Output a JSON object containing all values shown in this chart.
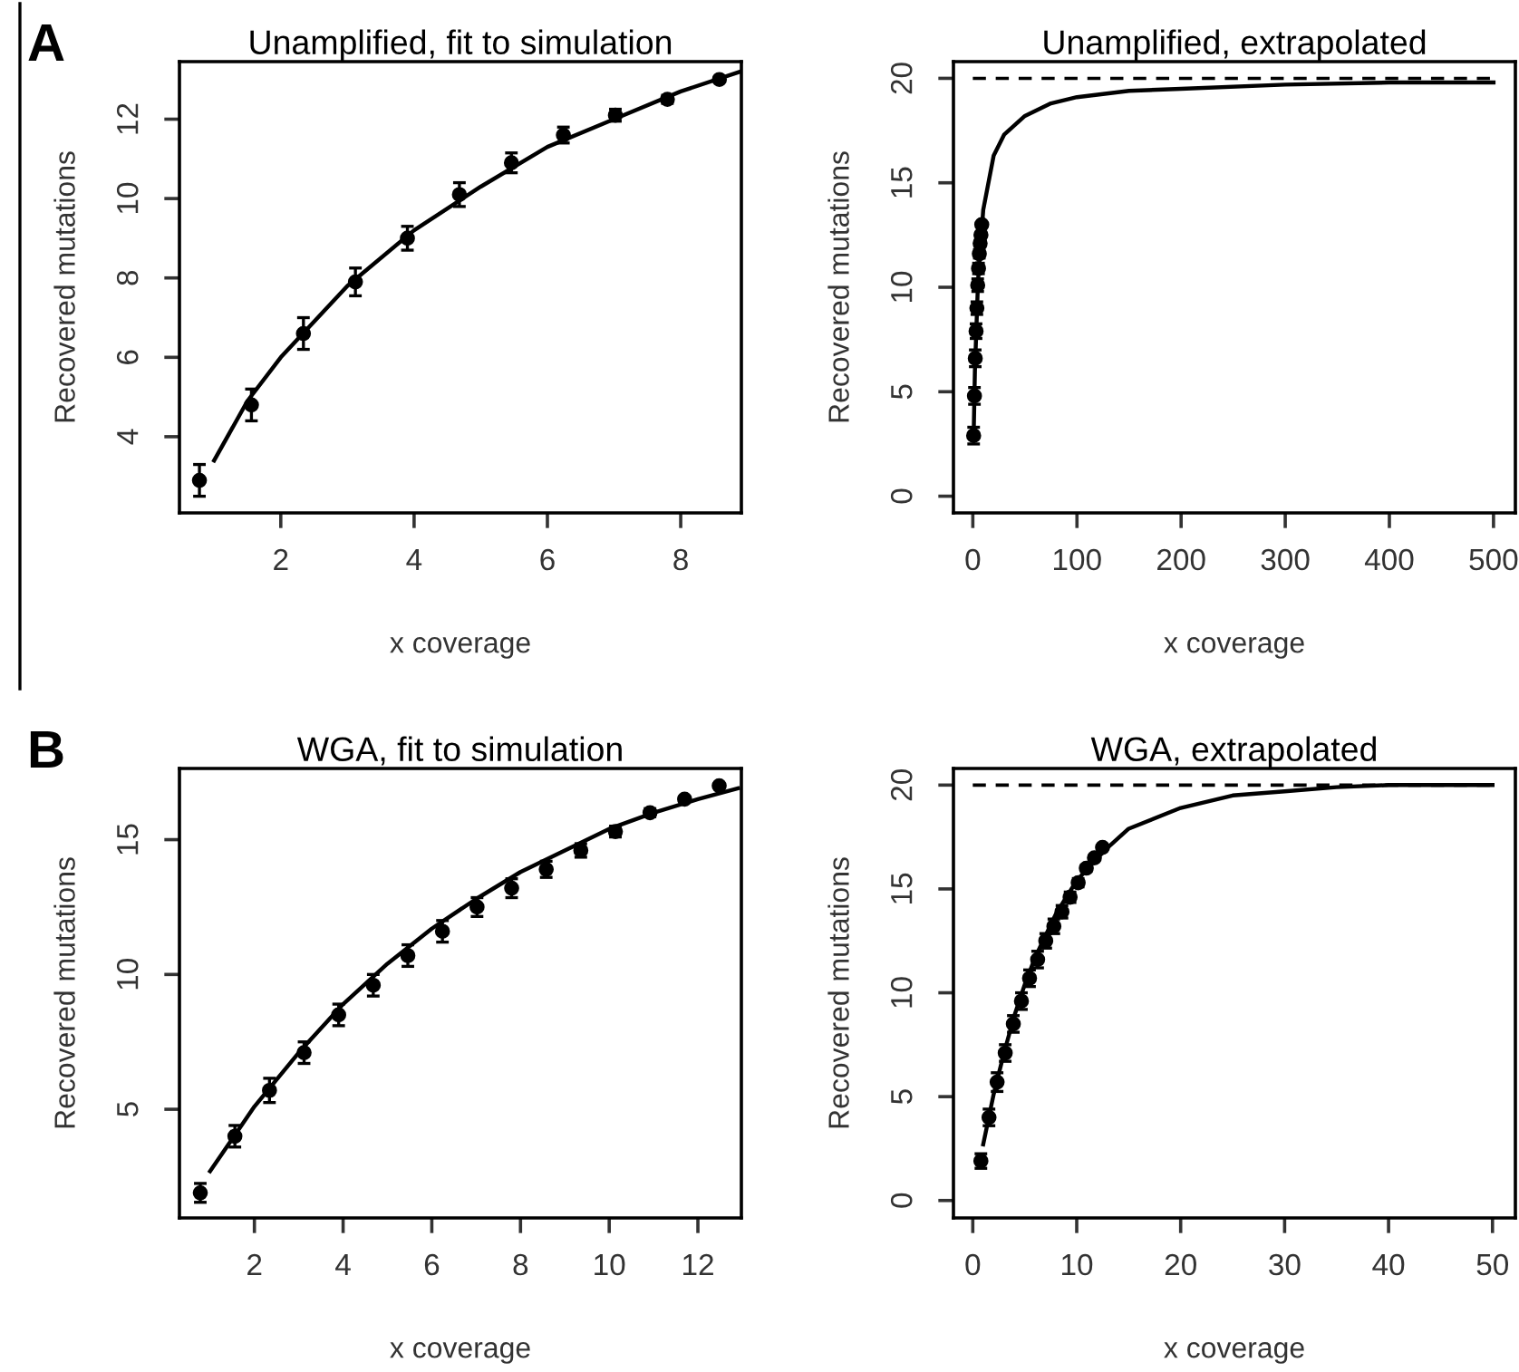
{
  "chart_data": [
    {
      "type": "scatter",
      "title": "Unamplified, fit to simulation",
      "xlabel": "x coverage",
      "ylabel": "Recovered mutations",
      "annotations": [
        "A"
      ],
      "xlim": [
        0.48,
        8.91
      ],
      "ylim": [
        2.08,
        13.45
      ],
      "xticks": [
        2,
        4,
        6,
        8
      ],
      "yticks": [
        4,
        6,
        8,
        10,
        12
      ],
      "grid": false,
      "series": [
        {
          "color": "#000000",
          "marker": "circle",
          "x": [
            0.78,
            1.56,
            2.34,
            3.12,
            3.9,
            4.68,
            5.46,
            6.24,
            7.02,
            7.8,
            8.58
          ],
          "values": [
            2.9,
            4.8,
            6.6,
            7.9,
            9.0,
            10.1,
            10.9,
            11.6,
            12.1,
            12.5,
            13.0
          ],
          "errors": [
            0.4,
            0.4,
            0.4,
            0.35,
            0.3,
            0.3,
            0.25,
            0.2,
            0.15,
            0.1,
            0.05
          ]
        },
        {
          "type": "line",
          "color": "#000000",
          "line_style": "solid",
          "x": [
            1,
            1.5,
            2,
            3,
            4,
            5,
            6,
            7,
            8,
            8.9
          ],
          "values": [
            3.4,
            4.9,
            6.0,
            7.8,
            9.2,
            10.3,
            11.3,
            12.0,
            12.7,
            13.2
          ]
        }
      ]
    },
    {
      "type": "scatter",
      "title": "Unamplified, extrapolated",
      "xlabel": "x coverage",
      "ylabel": "Recovered mutations",
      "xlim": [
        -18.6,
        521
      ],
      "ylim": [
        -0.8,
        20.8
      ],
      "xticks": [
        0,
        100,
        200,
        300,
        400,
        500
      ],
      "yticks": [
        0,
        5,
        10,
        15,
        20
      ],
      "grid": false,
      "ref_lines": [
        {
          "axis": "y",
          "value": 20,
          "color": "#000000",
          "line_style": "dashed"
        }
      ],
      "series": [
        {
          "color": "#000000",
          "marker": "circle",
          "x": [
            0.78,
            1.56,
            2.34,
            3.12,
            3.9,
            4.68,
            5.46,
            6.24,
            7.02,
            7.8,
            8.58
          ],
          "values": [
            2.9,
            4.8,
            6.6,
            7.9,
            9.0,
            10.1,
            10.9,
            11.6,
            12.1,
            12.5,
            13.0
          ],
          "errors": [
            0.4,
            0.4,
            0.4,
            0.35,
            0.3,
            0.3,
            0.25,
            0.2,
            0.15,
            0.1,
            0.05
          ]
        },
        {
          "type": "line",
          "color": "#000000",
          "line_style": "solid",
          "x": [
            1,
            2,
            5,
            10,
            20,
            30,
            50,
            75,
            100,
            150,
            200,
            300,
            400,
            500
          ],
          "values": [
            3.4,
            6.0,
            10.3,
            13.7,
            16.3,
            17.3,
            18.2,
            18.8,
            19.1,
            19.4,
            19.5,
            19.7,
            19.8,
            19.8
          ]
        }
      ]
    },
    {
      "type": "scatter",
      "title": "WGA, fit to simulation",
      "xlabel": "x coverage",
      "ylabel": "Recovered mutations",
      "annotations": [
        "B"
      ],
      "xlim": [
        0.31,
        12.98
      ],
      "ylim": [
        0.97,
        17.64
      ],
      "xticks": [
        2,
        4,
        6,
        8,
        10,
        12
      ],
      "yticks": [
        5,
        10,
        15
      ],
      "grid": false,
      "series": [
        {
          "color": "#000000",
          "marker": "circle",
          "x": [
            0.78,
            1.56,
            2.34,
            3.12,
            3.9,
            4.68,
            5.46,
            6.24,
            7.02,
            7.8,
            8.58,
            9.36,
            10.14,
            10.92,
            11.7,
            12.48
          ],
          "values": [
            1.9,
            4.0,
            5.7,
            7.1,
            8.5,
            9.6,
            10.7,
            11.6,
            12.5,
            13.2,
            13.9,
            14.6,
            15.3,
            16.0,
            16.5,
            17.0
          ],
          "errors": [
            0.35,
            0.4,
            0.45,
            0.4,
            0.4,
            0.4,
            0.4,
            0.4,
            0.35,
            0.35,
            0.3,
            0.25,
            0.2,
            0.15,
            0.1,
            0.05
          ]
        },
        {
          "type": "line",
          "color": "#000000",
          "line_style": "solid",
          "x": [
            1,
            2,
            3,
            4,
            5,
            6,
            7,
            8,
            9,
            10,
            11,
            12,
            12.9
          ],
          "values": [
            2.7,
            5.1,
            7.1,
            8.9,
            10.4,
            11.7,
            12.8,
            13.8,
            14.6,
            15.4,
            16.0,
            16.5,
            16.9
          ]
        }
      ]
    },
    {
      "type": "scatter",
      "title": "WGA, extrapolated",
      "xlabel": "x coverage",
      "ylabel": "Recovered mutations",
      "xlim": [
        -1.86,
        52.2
      ],
      "ylim": [
        -0.84,
        20.8
      ],
      "xticks": [
        0,
        10,
        20,
        30,
        40,
        50
      ],
      "yticks": [
        0,
        5,
        10,
        15,
        20
      ],
      "grid": false,
      "ref_lines": [
        {
          "axis": "y",
          "value": 20,
          "color": "#000000",
          "line_style": "dashed"
        }
      ],
      "series": [
        {
          "color": "#000000",
          "marker": "circle",
          "x": [
            0.78,
            1.56,
            2.34,
            3.12,
            3.9,
            4.68,
            5.46,
            6.24,
            7.02,
            7.8,
            8.58,
            9.36,
            10.14,
            10.92,
            11.7,
            12.48
          ],
          "values": [
            1.9,
            4.0,
            5.7,
            7.1,
            8.5,
            9.6,
            10.7,
            11.6,
            12.5,
            13.2,
            13.9,
            14.6,
            15.3,
            16.0,
            16.5,
            17.0
          ],
          "errors": [
            0.35,
            0.4,
            0.45,
            0.4,
            0.4,
            0.4,
            0.4,
            0.4,
            0.35,
            0.35,
            0.3,
            0.25,
            0.2,
            0.15,
            0.1,
            0.05
          ]
        },
        {
          "type": "line",
          "color": "#000000",
          "line_style": "solid",
          "x": [
            1,
            2,
            3,
            4,
            5,
            6,
            8,
            10,
            12,
            13,
            15,
            20,
            25,
            30,
            35,
            40,
            50
          ],
          "values": [
            2.7,
            5.1,
            7.1,
            8.9,
            10.4,
            11.7,
            13.8,
            15.4,
            16.5,
            17.0,
            17.9,
            18.9,
            19.5,
            19.7,
            19.9,
            20.0,
            20.0
          ]
        }
      ]
    }
  ]
}
